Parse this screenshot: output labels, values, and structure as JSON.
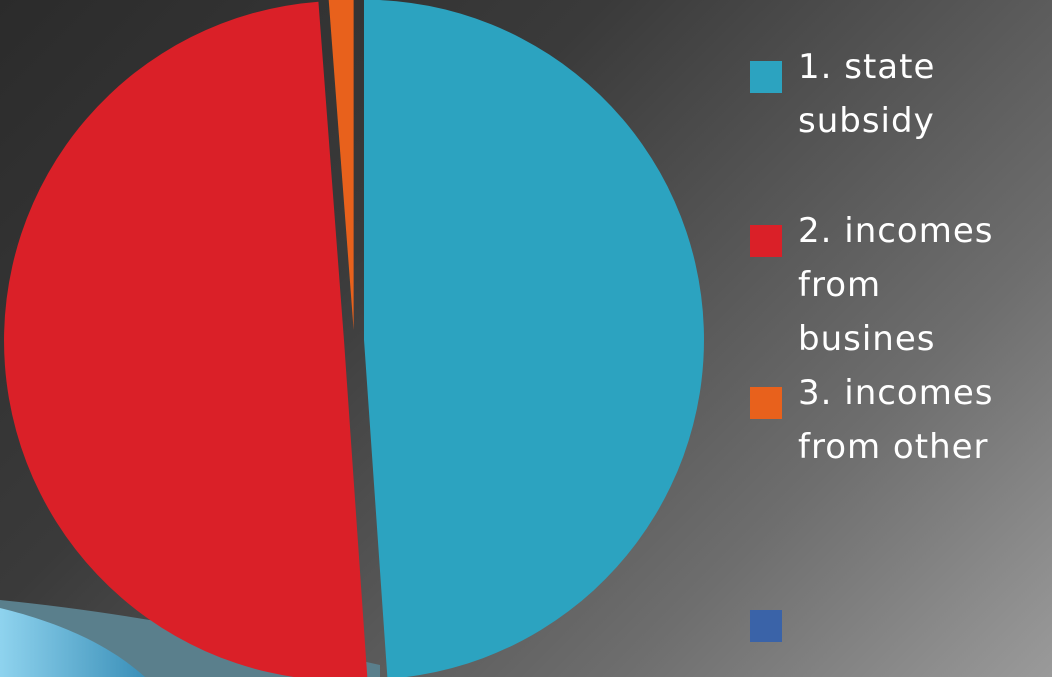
{
  "chart_data": {
    "type": "pie",
    "title": "",
    "series": [
      {
        "name": "1. state subsidy",
        "label_lines": [
          "1. state",
          "subsidy"
        ],
        "value": 48.9,
        "color": "#2ca3c0"
      },
      {
        "name": "2. incomes from busines",
        "label_lines": [
          "2. incomes",
          "from",
          "busines"
        ],
        "value": 49.9,
        "color": "#da2028"
      },
      {
        "name": "3. incomes from other",
        "label_lines": [
          "3. incomes",
          "from other"
        ],
        "value": 1.2,
        "color": "#e8611c"
      }
    ],
    "legend": {
      "position": "right"
    },
    "extra_legend_swatch_color": "#3a63a8"
  }
}
